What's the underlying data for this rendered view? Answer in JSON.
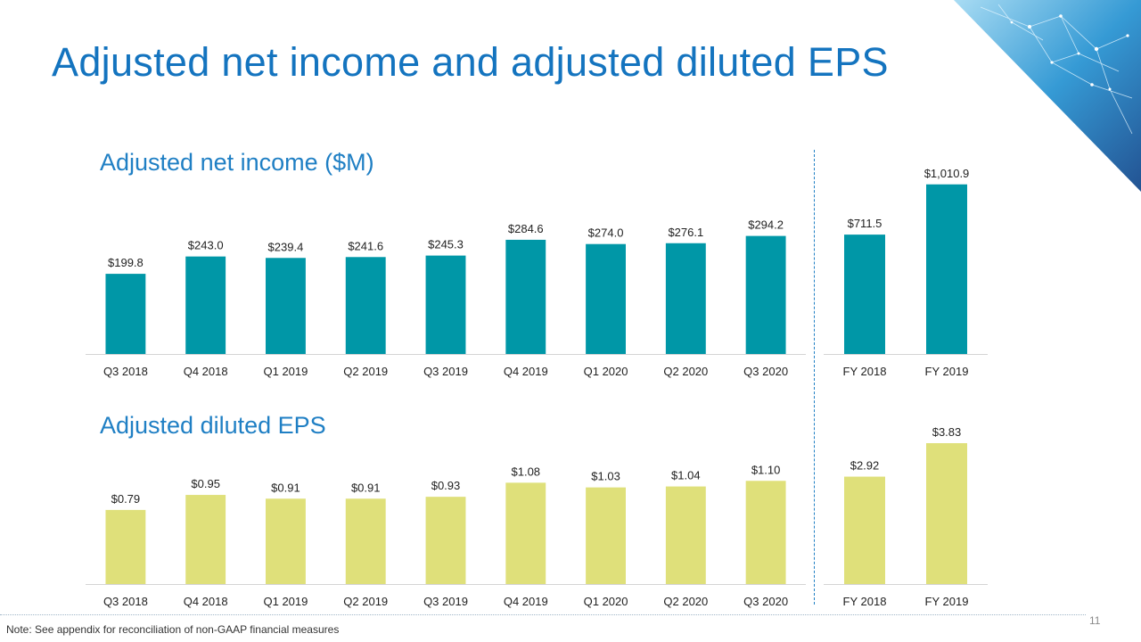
{
  "slide": {
    "title": "Adjusted net income and adjusted diluted EPS",
    "note": "Note: See appendix for reconciliation of non-GAAP financial measures",
    "page_number": "11"
  },
  "colors": {
    "title": "#1474bf",
    "income_bar": "#0097a7",
    "eps_bar": "#dfe07a",
    "divider": "#1f7fc4"
  },
  "chart_data": [
    {
      "type": "bar",
      "title": "Adjusted net income ($M)",
      "categories": [
        "Q3 2018",
        "Q4 2018",
        "Q1 2019",
        "Q2 2019",
        "Q3 2019",
        "Q4 2019",
        "Q1 2020",
        "Q2 2020",
        "Q3 2020"
      ],
      "values": [
        199.8,
        243.0,
        239.4,
        241.6,
        245.3,
        284.6,
        274.0,
        276.1,
        294.2
      ],
      "labels": [
        "$199.8",
        "$243.0",
        "$239.4",
        "$241.6",
        "$245.3",
        "$284.6",
        "$274.0",
        "$276.1",
        "$294.2"
      ],
      "ylim": [
        0,
        300
      ]
    },
    {
      "type": "bar",
      "categories": [
        "FY 2018",
        "FY 2019"
      ],
      "values": [
        711.5,
        1010.9
      ],
      "labels": [
        "$711.5",
        "$1,010.9"
      ],
      "ylim": [
        0,
        1100
      ]
    },
    {
      "type": "bar",
      "title": "Adjusted diluted EPS",
      "categories": [
        "Q3 2018",
        "Q4 2018",
        "Q1 2019",
        "Q2 2019",
        "Q3 2019",
        "Q4 2019",
        "Q1 2020",
        "Q2 2020",
        "Q3 2020"
      ],
      "values": [
        0.79,
        0.95,
        0.91,
        0.91,
        0.93,
        1.08,
        1.03,
        1.04,
        1.1
      ],
      "labels": [
        "$0.79",
        "$0.95",
        "$0.91",
        "$0.91",
        "$0.93",
        "$1.08",
        "$1.03",
        "$1.04",
        "$1.10"
      ],
      "ylim": [
        0,
        1.15
      ]
    },
    {
      "type": "bar",
      "categories": [
        "FY 2018",
        "FY 2019"
      ],
      "values": [
        2.92,
        3.83
      ],
      "labels": [
        "$2.92",
        "$3.83"
      ],
      "ylim": [
        0,
        4.0
      ]
    }
  ]
}
